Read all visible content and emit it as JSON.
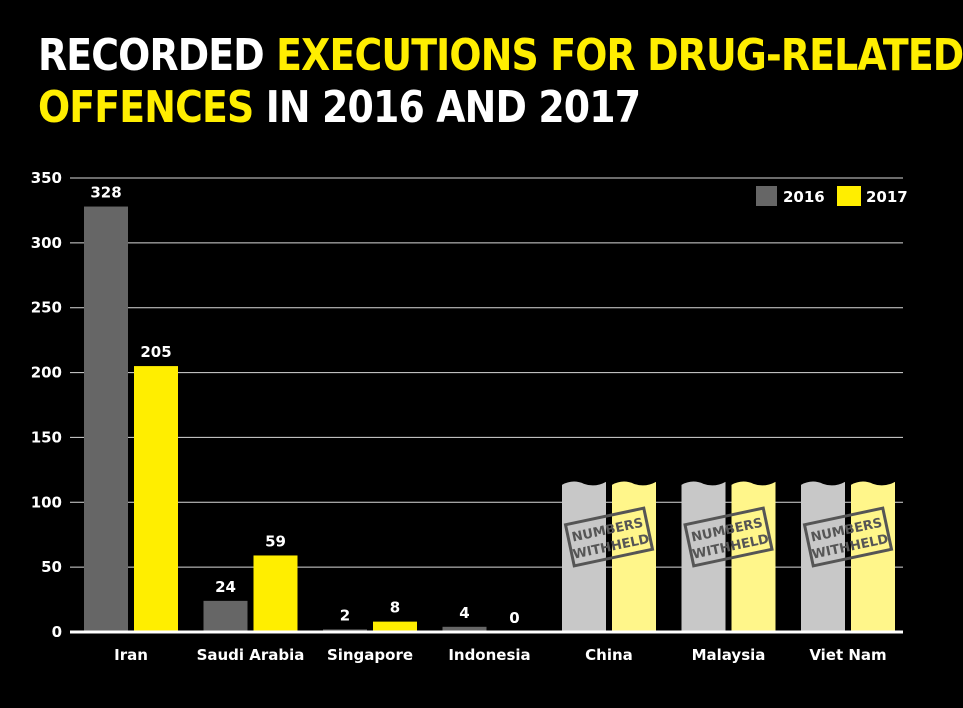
{
  "title": {
    "part1": "RECORDED ",
    "part2": "EXECUTIONS FOR DRUG-RELATED",
    "part3": "OFFENCES",
    "part4": " IN 2016 AND 2017"
  },
  "colors": {
    "background": "#000000",
    "series2016": "#666666",
    "series2017": "#ffee00",
    "withheld2016": "#c8c8c8",
    "withheld2017": "#fff68a",
    "grid": "#ffffff",
    "text": "#ffffff",
    "stamp": "#555555"
  },
  "chart_data": {
    "type": "bar",
    "title": "RECORDED EXECUTIONS FOR DRUG-RELATED OFFENCES IN 2016 AND 2017",
    "xlabel": "",
    "ylabel": "",
    "ylim": [
      0,
      350
    ],
    "yticks": [
      0,
      50,
      100,
      150,
      200,
      250,
      300,
      350
    ],
    "grid": true,
    "legend_position": "top-right",
    "categories": [
      "Iran",
      "Saudi Arabia",
      "Singapore",
      "Indonesia",
      "China",
      "Malaysia",
      "Viet Nam"
    ],
    "series": [
      {
        "name": "2016",
        "values": [
          328,
          24,
          2,
          4,
          null,
          null,
          null
        ],
        "labels": [
          "328",
          "24",
          "2",
          "4",
          "",
          "",
          ""
        ]
      },
      {
        "name": "2017",
        "values": [
          205,
          59,
          8,
          0,
          null,
          null,
          null
        ],
        "labels": [
          "205",
          "59",
          "8",
          "0",
          "",
          "",
          ""
        ]
      }
    ],
    "withheld": {
      "categories": [
        "China",
        "Malaysia",
        "Viet Nam"
      ],
      "stamp_lines": [
        "NUMBERS",
        "WITHHELD"
      ]
    }
  }
}
